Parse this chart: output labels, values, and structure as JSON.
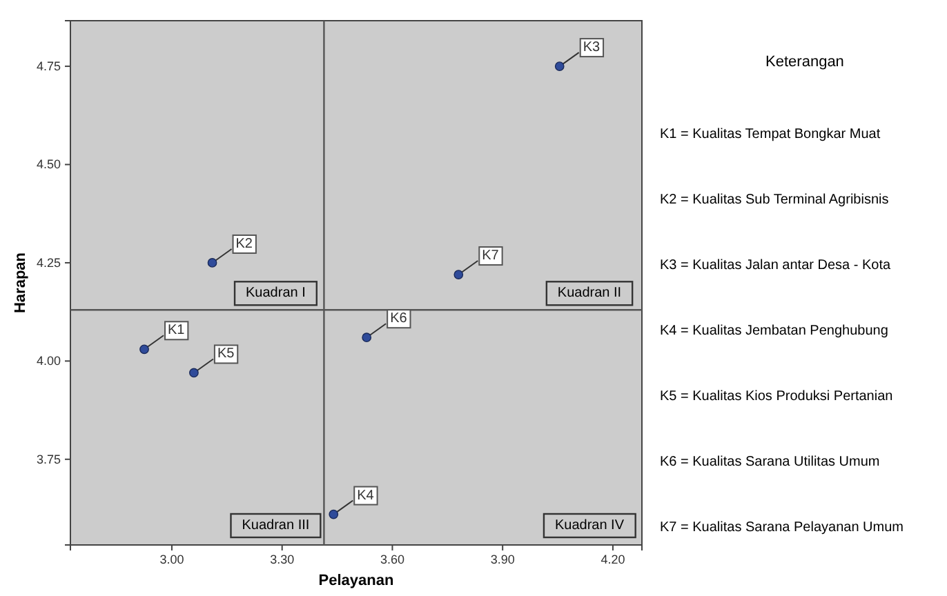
{
  "chart_data": {
    "type": "scatter",
    "xlabel": "Pelayanan",
    "ylabel": "Harapan",
    "xlim": [
      2.724,
      4.279
    ],
    "ylim": [
      3.532,
      4.866
    ],
    "xticks": [
      {
        "value": 3.0,
        "label": "3.00"
      },
      {
        "value": 3.3,
        "label": "3.30"
      },
      {
        "value": 3.6,
        "label": "3.60"
      },
      {
        "value": 3.9,
        "label": "3.90"
      },
      {
        "value": 4.2,
        "label": "4.20"
      }
    ],
    "yticks": [
      {
        "value": 3.75,
        "label": "3.75"
      },
      {
        "value": 4.0,
        "label": "4.00"
      },
      {
        "value": 4.25,
        "label": "4.25"
      },
      {
        "value": 4.5,
        "label": "4.50"
      },
      {
        "value": 4.75,
        "label": "4.75"
      }
    ],
    "grid": false,
    "marker": "circle",
    "series": [
      {
        "name": "K1",
        "color": "#2f4b9a",
        "x": [
          2.925
        ],
        "values": [
          4.03
        ]
      },
      {
        "name": "K2",
        "color": "#2f4b9a",
        "x": [
          3.11
        ],
        "values": [
          4.25
        ]
      },
      {
        "name": "K3",
        "color": "#2f4b9a",
        "x": [
          4.055
        ],
        "values": [
          4.75
        ]
      },
      {
        "name": "K4",
        "color": "#2f4b9a",
        "x": [
          3.44
        ],
        "values": [
          3.61
        ]
      },
      {
        "name": "K5",
        "color": "#2f4b9a",
        "x": [
          3.06
        ],
        "values": [
          3.97
        ]
      },
      {
        "name": "K6",
        "color": "#2f4b9a",
        "x": [
          3.53
        ],
        "values": [
          4.06
        ]
      },
      {
        "name": "K7",
        "color": "#2f4b9a",
        "x": [
          3.78
        ],
        "values": [
          4.22
        ]
      }
    ],
    "ref_lines": [
      {
        "axis": "x",
        "value": 3.414,
        "color": "#555555"
      },
      {
        "axis": "y",
        "value": 4.13,
        "color": "#555555"
      }
    ],
    "annotations": [
      "Kuadran I",
      "Kuadran II",
      "Kuadran III",
      "Kuadran IV",
      "Keterangan",
      "K1 = Kualitas Tempat Bongkar Muat",
      "K2 = Kualitas Sub Terminal Agribisnis",
      "K3 = Kualitas Jalan antar Desa - Kota",
      "K4 = Kualitas Jembatan Penghubung",
      "K5 = Kualitas Kios Produksi Pertanian",
      "K6 = Kualitas Sarana Utilitas Umum",
      "K7 = Kualitas Sarana Pelayanan Umum"
    ]
  }
}
